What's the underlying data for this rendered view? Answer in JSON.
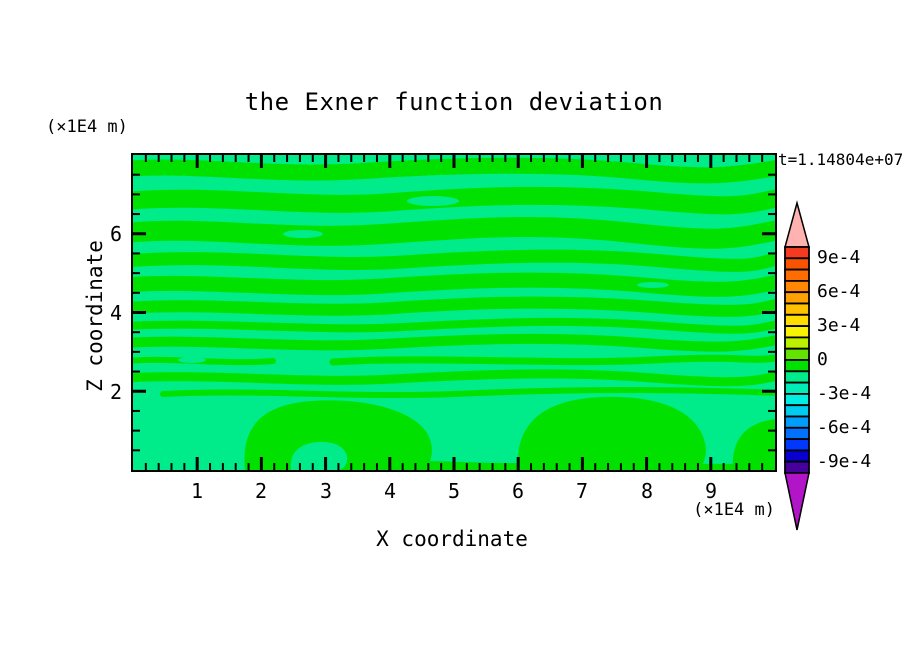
{
  "colors": {
    "page_background": "#FFFFFF",
    "band_positive": "#00E100",
    "band_negative": "#00EB89",
    "axis": "#000000"
  },
  "title": {
    "text": "the Exner function deviation"
  },
  "annotations": {
    "time": "t=1.14804e+07",
    "y_unit_label": "(×1E4 m)",
    "x_unit_label": "(×1E4 m)"
  },
  "axes": {
    "x": {
      "label": "X coordinate",
      "ticks": [
        "1",
        "2",
        "3",
        "4",
        "5",
        "6",
        "7",
        "8",
        "9"
      ]
    },
    "y": {
      "label": "Z coordinate",
      "ticks": [
        "2",
        "4",
        "6"
      ]
    }
  },
  "colorbar": {
    "labels": [
      "9e-4",
      "6e-4",
      "3e-4",
      "0",
      "-3e-4",
      "-6e-4",
      "-9e-4"
    ],
    "over_color": "#FFB3B1",
    "under_color": "#B214C8",
    "segments": [
      "#F43A20",
      "#FA5300",
      "#FF6D00",
      "#FF8800",
      "#FFA300",
      "#FFC000",
      "#FFDD00",
      "#F9F400",
      "#BCEF00",
      "#63E300",
      "#00E100",
      "#00EB89",
      "#00EDBA",
      "#00EFE2",
      "#00CBF1",
      "#009EFC",
      "#0070FF",
      "#0038FF",
      "#0800CC",
      "#46009C"
    ]
  },
  "chart_data": {
    "type": "heatmap",
    "title": "the Exner function deviation",
    "xlabel": "X coordinate",
    "ylabel": "Z coordinate",
    "axis_units": "(×1E4 m)",
    "xlim": [
      0,
      10
    ],
    "ylim": [
      0,
      8
    ],
    "xticks": [
      1,
      2,
      3,
      4,
      5,
      6,
      7,
      8,
      9
    ],
    "yticks": [
      2,
      4,
      6
    ],
    "x_minor_tick": 0.2,
    "y_minor_tick": 0.5,
    "time_annotation": "t=1.14804e+07",
    "contour_interval": "1e-4",
    "colorbar_tick_labels": [
      "9e-4",
      "6e-4",
      "3e-4",
      "0",
      "-3e-4",
      "-6e-4",
      "-9e-4"
    ],
    "colorbar_range": [
      "-1e-3",
      "+1e-3"
    ],
    "legend_position": "right vertical colorbar with over/under arrow caps",
    "grid": false,
    "visible_field_bands": [
      {
        "value_range": "0 to +1e-4",
        "color": "#00E100",
        "appearance": "wavy horizontal stripes across upper two-thirds; large rounded blobs and a strip along the bottom"
      },
      {
        "value_range": "-1e-4 to 0",
        "color": "#00EB89",
        "appearance": "background between stripes and dominant in lower third, with small lens-shaped islands inside positive areas"
      }
    ]
  }
}
